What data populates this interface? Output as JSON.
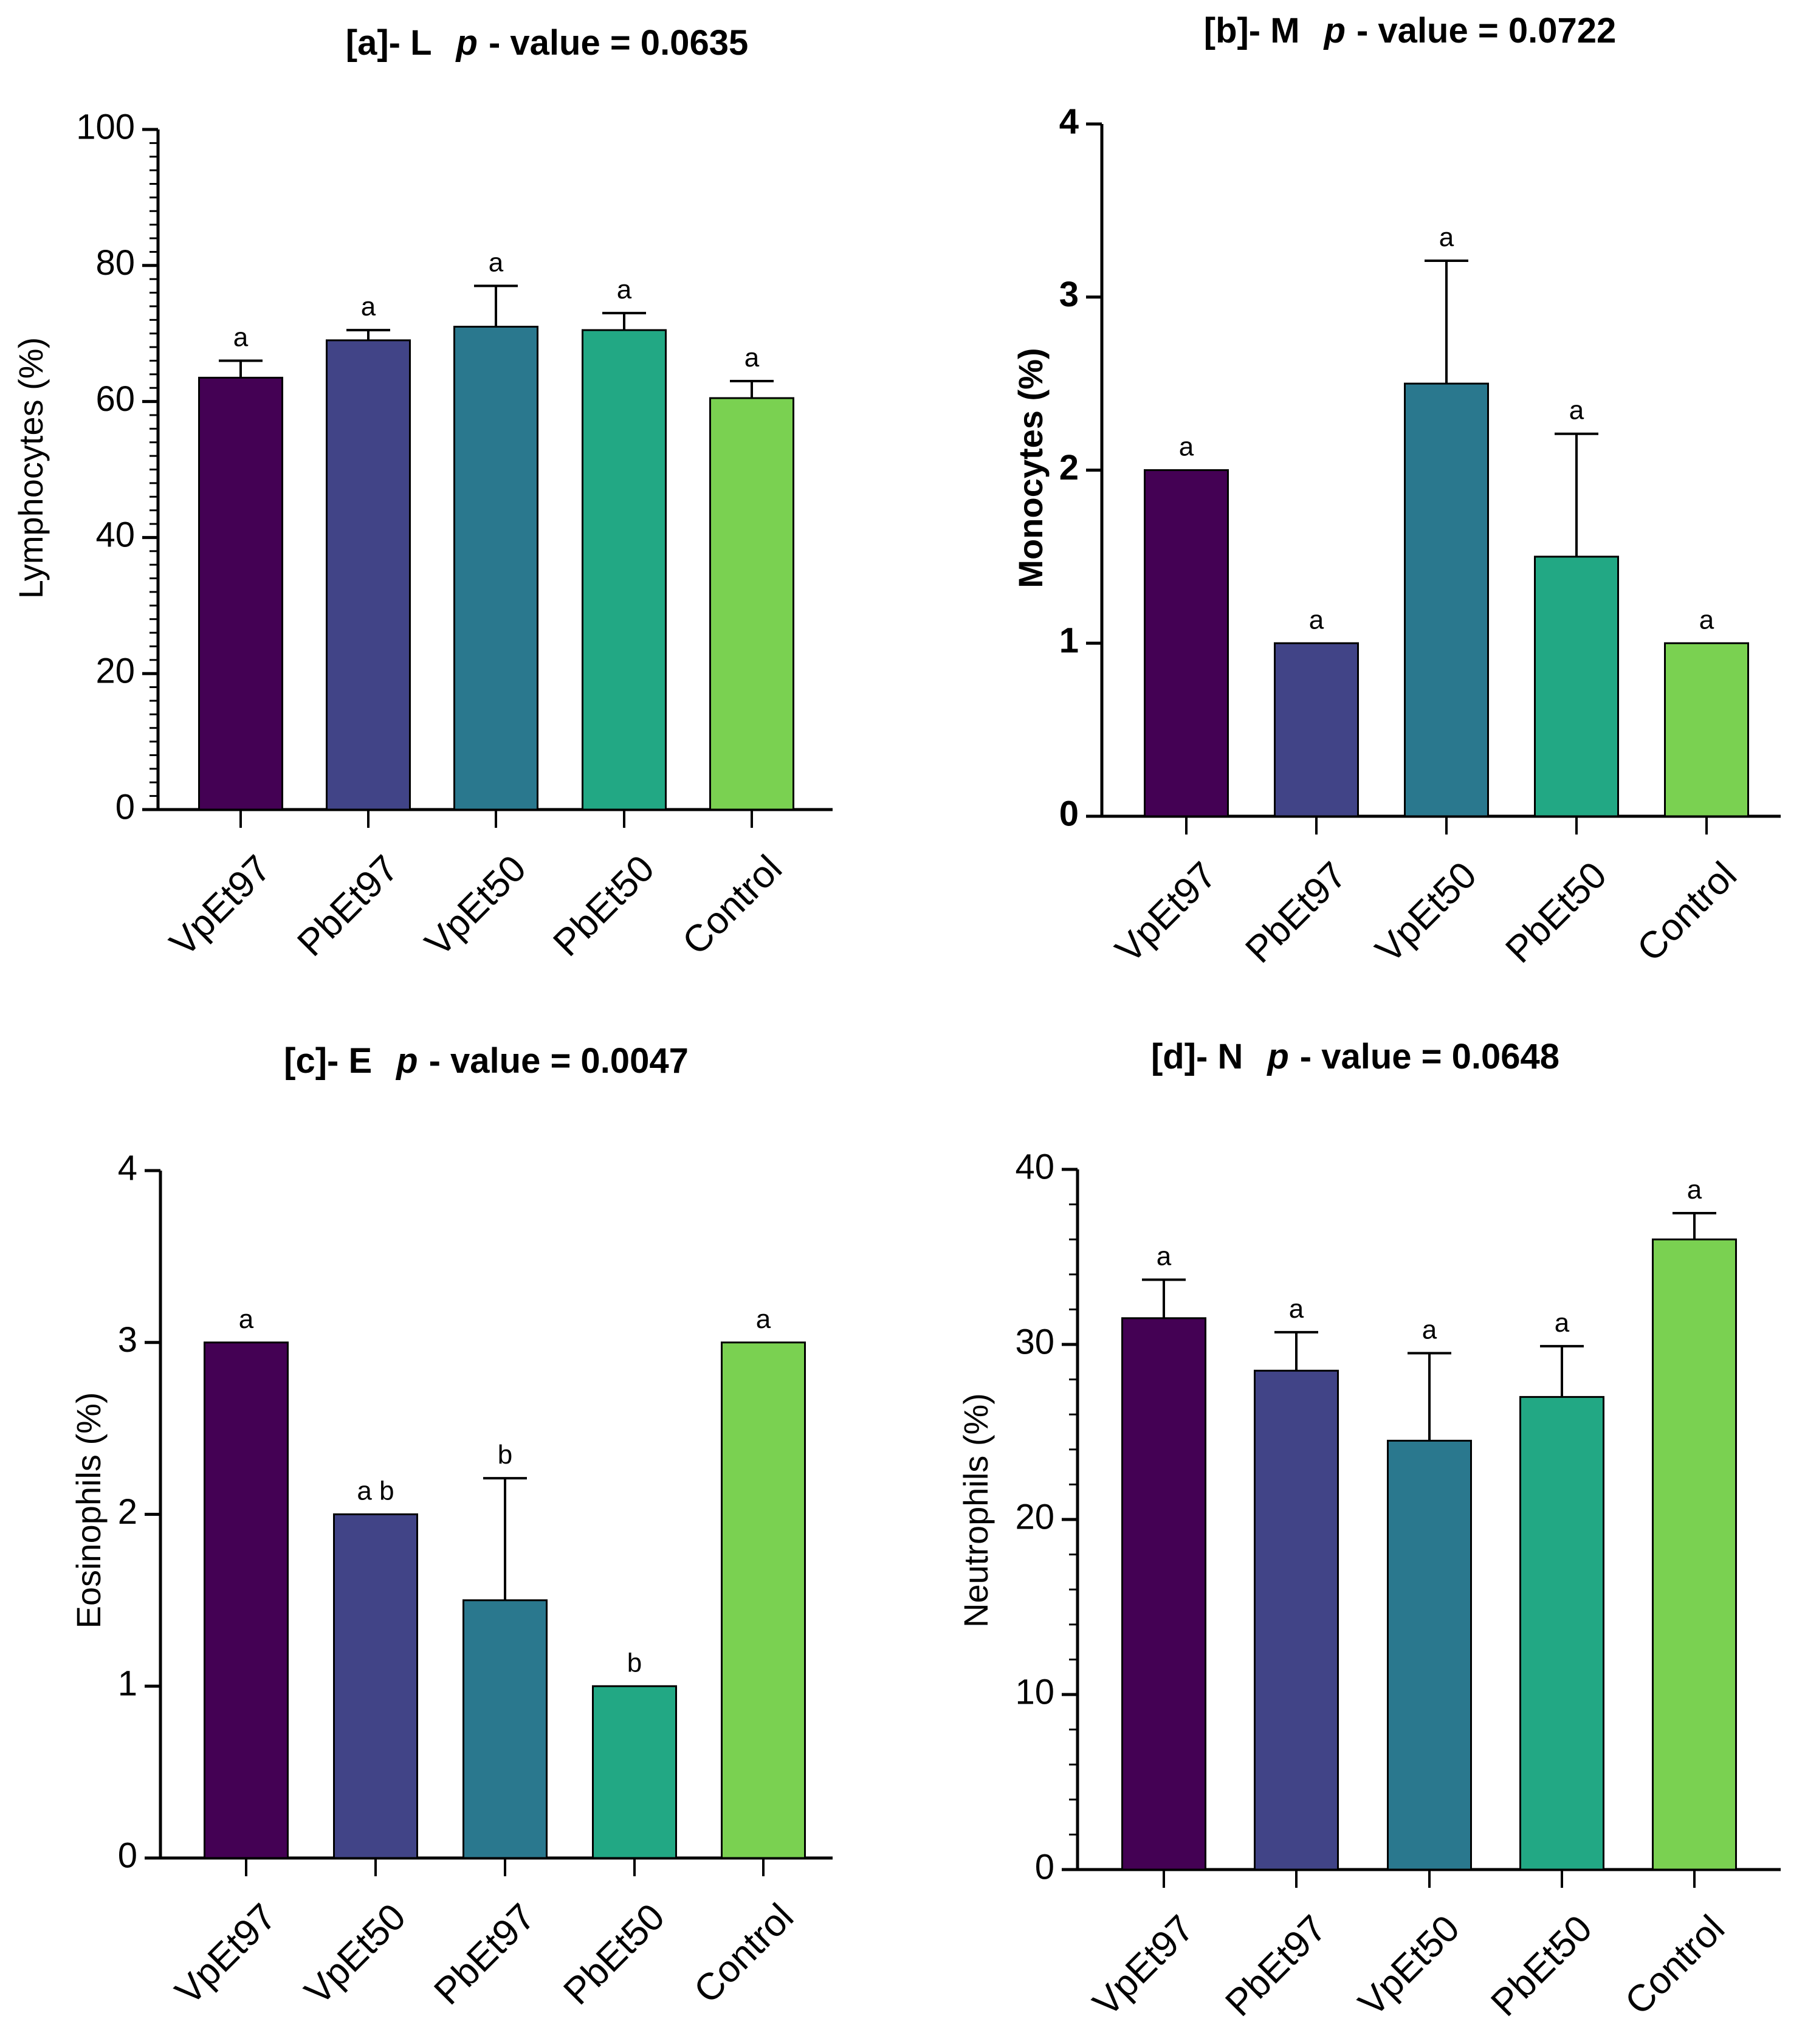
{
  "chart_data": [
    {
      "id": "a",
      "type": "bar",
      "title_prefix": "[a]- L",
      "title_p": "p",
      "title_suffix": "- value = 0.0635",
      "ylabel": "Lymphocytes (%)",
      "ylim": [
        0,
        100
      ],
      "yticks": [
        "0",
        "20",
        "40",
        "60",
        "80",
        "100"
      ],
      "categories": [
        "VpEt97",
        "PbEt97",
        "VpEt50",
        "PbEt50",
        "Control"
      ],
      "values": [
        63.5,
        69,
        71,
        70.5,
        60.5
      ],
      "errors": [
        2.5,
        1.5,
        6,
        2.5,
        2.5
      ],
      "labels": [
        "a",
        "a",
        "a",
        "a",
        "a"
      ],
      "colors": [
        "#440154",
        "#414487",
        "#2a788e",
        "#22a884",
        "#7ad151"
      ]
    },
    {
      "id": "b",
      "type": "bar",
      "title_prefix": "[b]- M",
      "title_p": "p",
      "title_suffix": "- value = 0.0722",
      "ylabel": "Monocytes (%)",
      "ylim": [
        0,
        4
      ],
      "yticks": [
        "0",
        "1",
        "2",
        "3",
        "4"
      ],
      "categories": [
        "VpEt97",
        "PbEt97",
        "VpEt50",
        "PbEt50",
        "Control"
      ],
      "values": [
        2,
        1,
        2.5,
        1.5,
        1
      ],
      "errors": [
        0,
        0,
        0.71,
        0.71,
        0
      ],
      "labels": [
        "a",
        "a",
        "a",
        "a",
        "a"
      ],
      "colors": [
        "#440154",
        "#414487",
        "#2a788e",
        "#22a884",
        "#7ad151"
      ]
    },
    {
      "id": "c",
      "type": "bar",
      "title_prefix": "[c]- E",
      "title_p": "p",
      "title_suffix": "- value = 0.0047",
      "ylabel": "Eosinophils (%)",
      "ylim": [
        0,
        4
      ],
      "yticks": [
        "0",
        "1",
        "2",
        "3",
        "4"
      ],
      "categories": [
        "VpEt97",
        "VpEt50",
        "PbEt97",
        "PbEt50",
        "Control"
      ],
      "values": [
        3,
        2,
        1.5,
        1,
        3
      ],
      "errors": [
        0,
        0,
        0.71,
        0,
        0
      ],
      "labels": [
        "a",
        "a b",
        "b",
        "b",
        "a"
      ],
      "colors": [
        "#440154",
        "#414487",
        "#2a788e",
        "#22a884",
        "#7ad151"
      ]
    },
    {
      "id": "d",
      "type": "bar",
      "title_prefix": "[d]- N",
      "title_p": "p",
      "title_suffix": "- value =  0.0648",
      "ylabel": "Neutrophils (%)",
      "ylim": [
        0,
        40
      ],
      "yticks": [
        "0",
        "10",
        "20",
        "30",
        "40"
      ],
      "categories": [
        "VpEt97",
        "PbEt97",
        "VpEt50",
        "PbEt50",
        "Control"
      ],
      "values": [
        31.5,
        28.5,
        24.5,
        27,
        36
      ],
      "errors": [
        2.2,
        2.2,
        5,
        2.9,
        1.5
      ],
      "labels": [
        "a",
        "a",
        "a",
        "a",
        "a"
      ],
      "colors": [
        "#440154",
        "#414487",
        "#2a788e",
        "#22a884",
        "#7ad151"
      ]
    }
  ]
}
